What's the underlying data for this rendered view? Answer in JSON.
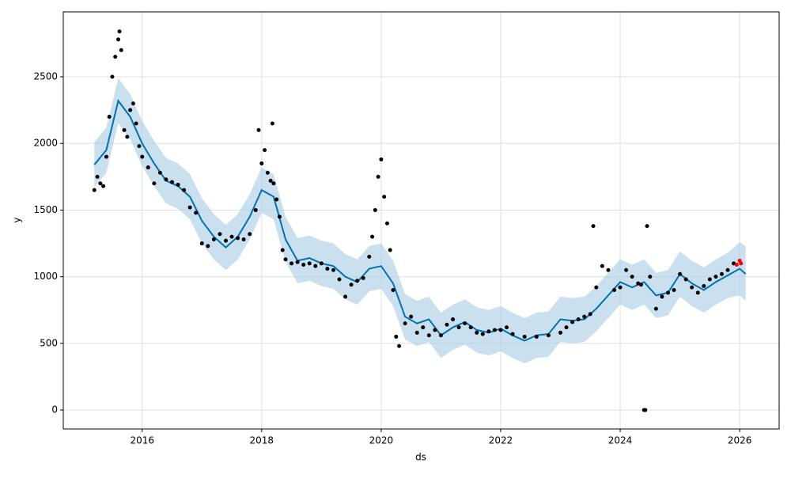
{
  "chart_data": {
    "type": "forecast",
    "xlabel": "ds",
    "ylabel": "y",
    "xlim": [
      2014.68,
      2026.66
    ],
    "ylim": [
      -142,
      2987
    ],
    "xticks": [
      2016,
      2018,
      2020,
      2022,
      2024,
      2026
    ],
    "yticks": [
      0,
      500,
      1000,
      1500,
      2000,
      2500
    ],
    "grid": true,
    "series": [
      {
        "mark": "band",
        "color": "#a6cbe3",
        "x": [
          2015.2,
          2015.4,
          2015.6,
          2015.8,
          2016.0,
          2016.2,
          2016.4,
          2016.6,
          2016.8,
          2017.0,
          2017.2,
          2017.4,
          2017.6,
          2017.8,
          2018.0,
          2018.2,
          2018.4,
          2018.6,
          2018.8,
          2019.0,
          2019.2,
          2019.4,
          2019.6,
          2019.8,
          2020.0,
          2020.2,
          2020.4,
          2020.6,
          2020.8,
          2021.0,
          2021.2,
          2021.4,
          2021.6,
          2021.8,
          2022.0,
          2022.2,
          2022.4,
          2022.6,
          2022.8,
          2023.0,
          2023.2,
          2023.4,
          2023.6,
          2023.8,
          2024.0,
          2024.2,
          2024.4,
          2024.6,
          2024.8,
          2025.0,
          2025.2,
          2025.4,
          2025.6,
          2025.8,
          2026.0,
          2026.1
        ],
        "lower": [
          1670,
          1780,
          2150,
          2030,
          1830,
          1680,
          1550,
          1510,
          1430,
          1250,
          1130,
          1050,
          1130,
          1280,
          1480,
          1430,
          1110,
          950,
          970,
          930,
          910,
          830,
          790,
          890,
          910,
          780,
          530,
          480,
          510,
          390,
          450,
          490,
          430,
          410,
          440,
          390,
          350,
          390,
          400,
          510,
          500,
          510,
          590,
          690,
          790,
          750,
          790,
          690,
          710,
          850,
          780,
          730,
          790,
          840,
          860,
          820
        ],
        "upper": [
          2010,
          2120,
          2490,
          2370,
          2170,
          2020,
          1890,
          1850,
          1770,
          1590,
          1470,
          1390,
          1470,
          1620,
          1820,
          1770,
          1450,
          1290,
          1310,
          1270,
          1250,
          1170,
          1130,
          1230,
          1250,
          1120,
          870,
          820,
          850,
          730,
          790,
          830,
          770,
          750,
          780,
          730,
          690,
          730,
          740,
          850,
          840,
          850,
          930,
          1030,
          1130,
          1090,
          1130,
          1030,
          1050,
          1190,
          1120,
          1070,
          1130,
          1180,
          1260,
          1230
        ]
      },
      {
        "mark": "line",
        "color": "#0072b2",
        "x": [
          2015.2,
          2015.4,
          2015.6,
          2015.8,
          2016.0,
          2016.2,
          2016.4,
          2016.6,
          2016.8,
          2017.0,
          2017.2,
          2017.4,
          2017.6,
          2017.8,
          2018.0,
          2018.2,
          2018.4,
          2018.6,
          2018.8,
          2019.0,
          2019.2,
          2019.4,
          2019.6,
          2019.8,
          2020.0,
          2020.2,
          2020.4,
          2020.6,
          2020.8,
          2021.0,
          2021.2,
          2021.4,
          2021.6,
          2021.8,
          2022.0,
          2022.2,
          2022.4,
          2022.6,
          2022.8,
          2023.0,
          2023.2,
          2023.4,
          2023.6,
          2023.8,
          2024.0,
          2024.2,
          2024.4,
          2024.6,
          2024.8,
          2025.0,
          2025.2,
          2025.4,
          2025.6,
          2025.8,
          2026.0,
          2026.1
        ],
        "values": [
          1840,
          1950,
          2320,
          2200,
          2000,
          1850,
          1720,
          1680,
          1600,
          1420,
          1300,
          1220,
          1300,
          1450,
          1650,
          1600,
          1280,
          1120,
          1140,
          1100,
          1080,
          1000,
          960,
          1060,
          1080,
          950,
          700,
          650,
          680,
          560,
          620,
          660,
          600,
          580,
          610,
          560,
          520,
          560,
          570,
          680,
          670,
          680,
          760,
          860,
          960,
          920,
          960,
          860,
          880,
          1020,
          950,
          900,
          960,
          1010,
          1060,
          1020
        ]
      },
      {
        "mark": "points",
        "color": "#000000",
        "x": [
          2015.2,
          2015.25,
          2015.3,
          2015.35,
          2015.4,
          2015.45,
          2015.5,
          2015.55,
          2015.6,
          2015.62,
          2015.65,
          2015.7,
          2015.75,
          2015.8,
          2015.85,
          2015.9,
          2015.95,
          2016.0,
          2016.1,
          2016.2,
          2016.3,
          2016.4,
          2016.5,
          2016.6,
          2016.7,
          2016.8,
          2016.9,
          2017.0,
          2017.1,
          2017.2,
          2017.3,
          2017.4,
          2017.5,
          2017.6,
          2017.7,
          2017.8,
          2017.9,
          2017.95,
          2018.0,
          2018.05,
          2018.1,
          2018.15,
          2018.18,
          2018.2,
          2018.25,
          2018.3,
          2018.35,
          2018.4,
          2018.5,
          2018.6,
          2018.7,
          2018.8,
          2018.9,
          2019.0,
          2019.1,
          2019.2,
          2019.3,
          2019.4,
          2019.5,
          2019.6,
          2019.7,
          2019.8,
          2019.85,
          2019.9,
          2019.95,
          2020.0,
          2020.05,
          2020.1,
          2020.15,
          2020.2,
          2020.25,
          2020.3,
          2020.4,
          2020.5,
          2020.6,
          2020.7,
          2020.8,
          2020.9,
          2021.0,
          2021.1,
          2021.2,
          2021.3,
          2021.4,
          2021.5,
          2021.6,
          2021.7,
          2021.8,
          2021.9,
          2022.0,
          2022.1,
          2022.2,
          2022.4,
          2022.6,
          2022.8,
          2023.0,
          2023.1,
          2023.2,
          2023.3,
          2023.4,
          2023.5,
          2023.55,
          2023.6,
          2023.7,
          2023.8,
          2023.9,
          2024.0,
          2024.1,
          2024.2,
          2024.3,
          2024.35,
          2024.4,
          2024.42,
          2024.45,
          2024.5,
          2024.6,
          2024.7,
          2024.8,
          2024.9,
          2025.0,
          2025.1,
          2025.2,
          2025.3,
          2025.4,
          2025.5,
          2025.6,
          2025.7,
          2025.8,
          2025.9
        ],
        "values": [
          1650,
          1750,
          1700,
          1680,
          1900,
          2200,
          2500,
          2650,
          2780,
          2840,
          2700,
          2100,
          2050,
          2250,
          2300,
          2150,
          1980,
          1900,
          1820,
          1700,
          1780,
          1730,
          1710,
          1690,
          1650,
          1520,
          1480,
          1250,
          1230,
          1280,
          1320,
          1270,
          1300,
          1290,
          1280,
          1320,
          1500,
          2100,
          1850,
          1950,
          1780,
          1720,
          2150,
          1700,
          1580,
          1450,
          1200,
          1130,
          1100,
          1110,
          1090,
          1100,
          1080,
          1100,
          1060,
          1050,
          980,
          850,
          940,
          970,
          990,
          1150,
          1300,
          1500,
          1750,
          1880,
          1600,
          1400,
          1200,
          900,
          550,
          480,
          650,
          700,
          580,
          620,
          560,
          600,
          560,
          640,
          680,
          620,
          650,
          620,
          580,
          570,
          590,
          600,
          600,
          620,
          570,
          550,
          550,
          560,
          580,
          620,
          660,
          680,
          700,
          720,
          1380,
          920,
          1080,
          1050,
          900,
          920,
          1050,
          1000,
          950,
          940,
          0,
          0,
          1380,
          1000,
          760,
          850,
          880,
          900,
          1020,
          980,
          920,
          880,
          930,
          980,
          1000,
          1020,
          1050,
          1100
        ]
      },
      {
        "mark": "points",
        "color": "#ff0000",
        "x": [
          2025.95,
          2026.0,
          2026.02
        ],
        "values": [
          1090,
          1120,
          1100
        ]
      }
    ]
  }
}
